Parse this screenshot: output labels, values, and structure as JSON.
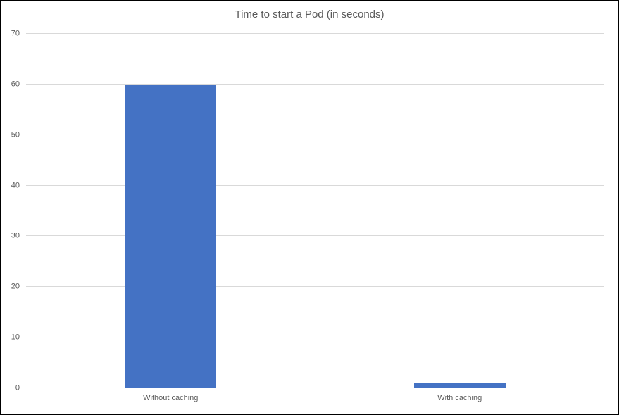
{
  "chart_data": {
    "type": "bar",
    "title": "Time to start a Pod (in seconds)",
    "categories": [
      "Without caching",
      "With caching"
    ],
    "values": [
      60,
      1
    ],
    "xlabel": "",
    "ylabel": "",
    "ylim": [
      0,
      70
    ],
    "yticks": [
      0,
      10,
      20,
      30,
      40,
      50,
      60,
      70
    ],
    "grid": true,
    "legend_position": "none",
    "colors": {
      "bar": "#4472c4",
      "gridline": "#d9d9d9",
      "axis_line": "#bfbfbf",
      "text": "#595959",
      "frame_border": "#000000"
    }
  }
}
